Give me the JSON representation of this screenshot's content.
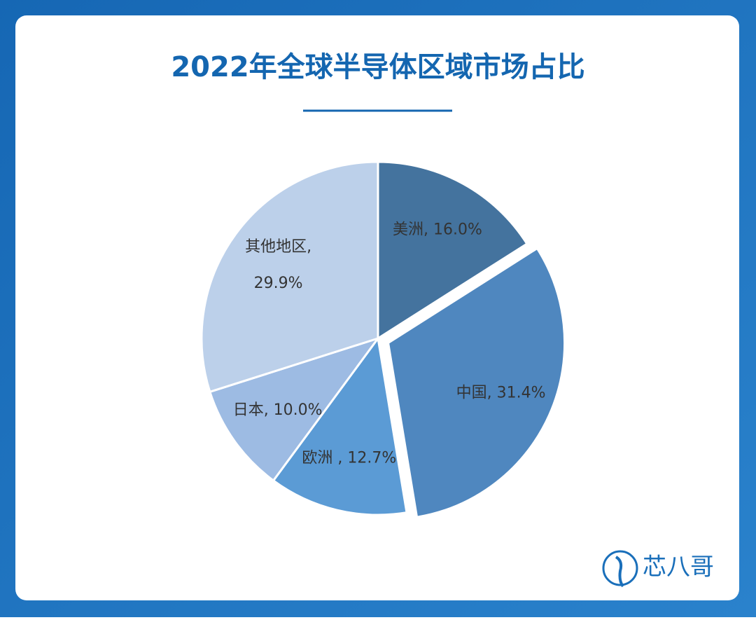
{
  "chart_data": {
    "type": "pie",
    "title": "2022年全球半导体区域市场占比",
    "values": [
      16.0,
      31.4,
      12.7,
      10.0,
      29.9
    ],
    "value_labels": [
      [
        "美洲, 16.0%"
      ],
      [
        "中国, 31.4%"
      ],
      [
        "欧洲 , 12.7%"
      ],
      [
        "日本, 10.0%"
      ],
      [
        "其他地区,",
        "29.9%"
      ]
    ],
    "colors": [
      "#44739e",
      "#4f87bf",
      "#5b9bd5",
      "#9dbbe3",
      "#bcd0ea"
    ],
    "exploded": [
      false,
      true,
      false,
      false,
      false
    ]
  },
  "brand": "芯八哥"
}
